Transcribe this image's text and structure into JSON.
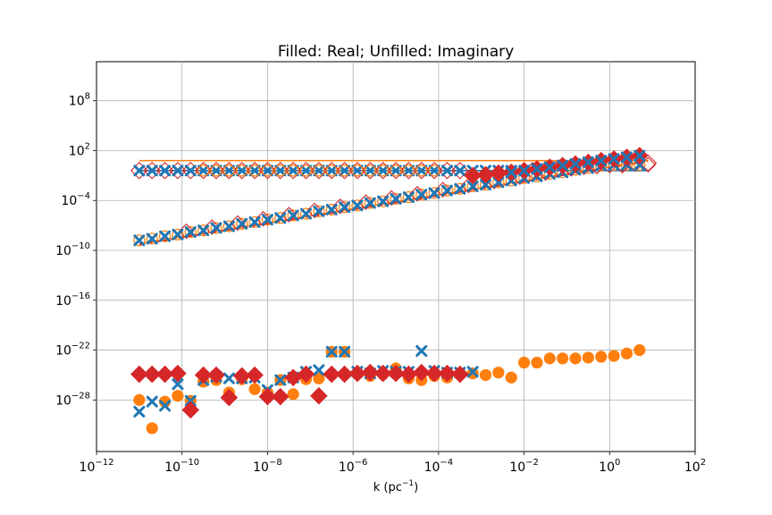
{
  "chart_data": {
    "type": "scatter",
    "title": "Filled: Real; Unfilled: Imaginary",
    "xlabel": "k (pc",
    "xlabel_sup": "−1",
    "xlabel_end": ")",
    "ylabel": "",
    "x_scale": "log",
    "y_scale": "log",
    "xlim": [
      -12,
      2
    ],
    "ylim": [
      -34.2,
      12.7
    ],
    "grid": true,
    "x_ticks": [
      {
        "exp": -12,
        "base": "10",
        "sup": "−12"
      },
      {
        "exp": -10,
        "base": "10",
        "sup": "−10"
      },
      {
        "exp": -8,
        "base": "10",
        "sup": "−8"
      },
      {
        "exp": -6,
        "base": "10",
        "sup": "−6"
      },
      {
        "exp": -4,
        "base": "10",
        "sup": "−4"
      },
      {
        "exp": -2,
        "base": "10",
        "sup": "−2"
      },
      {
        "exp": 0,
        "base": "10",
        "sup": "0"
      },
      {
        "exp": 2,
        "base": "10",
        "sup": "2"
      }
    ],
    "y_ticks": [
      {
        "exp": 8,
        "base": "10",
        "sup": "8"
      },
      {
        "exp": 2,
        "base": "10",
        "sup": "2"
      },
      {
        "exp": -4,
        "base": "10",
        "sup": "−4"
      },
      {
        "exp": -10,
        "base": "10",
        "sup": "−10"
      },
      {
        "exp": -16,
        "base": "10",
        "sup": "−16"
      },
      {
        "exp": -22,
        "base": "10",
        "sup": "−22"
      },
      {
        "exp": -28,
        "base": "10",
        "sup": "−28"
      }
    ],
    "colors": {
      "blue": "#1f77b4",
      "orange": "#ff7f0e",
      "red": "#d62728"
    },
    "lines": [
      {
        "name": "orange-horizontal",
        "color": "#ff7f0e",
        "style": "solid",
        "x": [
          -11,
          0.9
        ],
        "y": [
          0.8,
          0.8
        ]
      },
      {
        "name": "blue-horizontal",
        "color": "#1f77b4",
        "style": "solid",
        "x": [
          -11,
          0.9
        ],
        "y": [
          -0.4,
          -0.4
        ]
      },
      {
        "name": "orange-diagonal",
        "color": "#ff7f0e",
        "style": "solid",
        "x": [
          -11,
          0.9
        ],
        "y": [
          -9.2,
          0.8
        ]
      },
      {
        "name": "red-dashed-diagonal",
        "color": "#d62728",
        "style": "dashed",
        "x": [
          -11,
          0.9
        ],
        "y": [
          -9.3,
          0.7
        ]
      }
    ],
    "series": [
      {
        "group": "imag-red-diamond-upper",
        "marker": "diamond",
        "filled": false,
        "color": "#d62728",
        "size": 9,
        "x": [
          -11,
          -10.7,
          -10.4,
          -10.1,
          -9.8,
          -9.5,
          -9.2,
          -8.9,
          -8.6,
          -8.3,
          -8,
          -7.7,
          -7.4,
          -7.1,
          -6.8,
          -6.5,
          -6.2,
          -5.9,
          -5.6,
          -5.3,
          -5,
          -4.7,
          -4.4,
          -4.1,
          -3.8,
          -3.5
        ],
        "y": [
          -0.4,
          -0.4,
          -0.4,
          -0.4,
          -0.4,
          -0.4,
          -0.4,
          -0.4,
          -0.4,
          -0.4,
          -0.4,
          -0.4,
          -0.4,
          -0.4,
          -0.4,
          -0.4,
          -0.4,
          -0.4,
          -0.4,
          -0.4,
          -0.4,
          -0.4,
          -0.4,
          -0.4,
          -0.4,
          -0.4
        ]
      },
      {
        "group": "imag-red-diamond-right",
        "marker": "diamond",
        "filled": false,
        "color": "#d62728",
        "size": 9,
        "x": [
          -1.8,
          -1.5,
          -1.2,
          -0.9,
          -0.6,
          -0.3,
          0,
          0.3,
          0.6,
          0.9
        ],
        "y": [
          -0.4,
          -0.3,
          -0.1,
          0,
          0.1,
          0.2,
          0.3,
          0.4,
          0.5,
          0.5
        ]
      },
      {
        "group": "imag-blue-x-upper",
        "marker": "x",
        "filled": false,
        "color": "#1f77b4",
        "size": 5,
        "x": [
          -11,
          -10.7,
          -10.4,
          -10.1,
          -9.8,
          -9.5,
          -9.2,
          -8.9,
          -8.6,
          -8.3,
          -8,
          -7.7,
          -7.4,
          -7.1,
          -6.8,
          -6.5,
          -6.2,
          -5.9,
          -5.6,
          -5.3,
          -5,
          -4.7,
          -4.4,
          -4.1,
          -3.8,
          -3.5,
          -3.2,
          -2.9,
          -2.6,
          -2.3
        ],
        "y": [
          -0.4,
          -0.4,
          -0.4,
          -0.4,
          -0.4,
          -0.4,
          -0.4,
          -0.4,
          -0.4,
          -0.4,
          -0.4,
          -0.4,
          -0.4,
          -0.4,
          -0.4,
          -0.4,
          -0.4,
          -0.4,
          -0.4,
          -0.4,
          -0.4,
          -0.4,
          -0.4,
          -0.4,
          -0.4,
          -0.4,
          -0.4,
          -0.4,
          -0.4,
          -0.4
        ]
      },
      {
        "group": "imag-orange-circle-upper",
        "marker": "circle",
        "filled": false,
        "color": "#ff7f0e",
        "size": 6,
        "x": [
          -9.5,
          -9.2,
          -8.9,
          -8.6,
          -8.3,
          -8,
          -7.7,
          -7.4,
          -7.1,
          -6.8,
          -6.5,
          -6.2,
          -5.9,
          -5.6,
          -5.3,
          -5,
          -4.7,
          -4.4,
          -4.1
        ],
        "y": [
          -0.4,
          -0.4,
          -0.4,
          -0.4,
          -0.4,
          -0.4,
          -0.4,
          -0.4,
          -0.4,
          -0.4,
          -0.4,
          -0.4,
          -0.4,
          -0.4,
          -0.4,
          -0.4,
          -0.4,
          -0.4,
          -0.4
        ]
      },
      {
        "group": "imag-orange-circle-diagonal",
        "marker": "circle",
        "filled": false,
        "color": "#ff7f0e",
        "size": 6,
        "x": [
          -11,
          -10.7,
          -10.4,
          -10.1,
          -9.8,
          -9.5,
          -9.2,
          -8.9,
          -8.6,
          -8.3,
          -8,
          -7.7,
          -7.4,
          -7.1,
          -6.8,
          -6.5,
          -6.2,
          -5.9,
          -5.6,
          -5.3,
          -5,
          -4.7,
          -4.4,
          -4.1,
          -3.8,
          -3.5,
          -3.2,
          -2.9,
          -2.6,
          -2.3,
          -2,
          -1.7,
          -1.4,
          -1.1,
          -0.8,
          -0.5,
          -0.2,
          0.1,
          0.4,
          0.7
        ],
        "y": [
          -8.8,
          -8.6,
          -8.3,
          -8.1,
          -7.8,
          -7.6,
          -7.3,
          -7.1,
          -6.8,
          -6.6,
          -6.3,
          -6.1,
          -5.8,
          -5.6,
          -5.3,
          -5.1,
          -4.8,
          -4.6,
          -4.3,
          -4.1,
          -3.8,
          -3.6,
          -3.3,
          -3.1,
          -2.8,
          -2.6,
          -2.3,
          -2.1,
          -1.8,
          -1.6,
          -1.3,
          -1.1,
          -0.8,
          -0.6,
          -0.3,
          -0.1,
          0.2,
          0.3,
          0.3,
          0.3
        ]
      },
      {
        "group": "imag-red-diamond-diagonal",
        "marker": "diamond",
        "filled": false,
        "color": "#d62728",
        "size": 8,
        "x": [
          -9.9,
          -9.3,
          -8.7,
          -8.1,
          -7.5,
          -6.9,
          -6.3,
          -5.7,
          -5.1,
          -4.5,
          -3.9,
          -3.3,
          -2.7,
          -2.1,
          -1.5,
          -0.9,
          -0.3,
          0.3,
          0.9
        ],
        "y": [
          -7.7,
          -7.2,
          -6.7,
          -6.2,
          -5.7,
          -5.2,
          -4.7,
          -4.2,
          -3.7,
          -3.2,
          -2.7,
          -2.2,
          -1.7,
          -1.2,
          -0.7,
          -0.2,
          0.1,
          0.2,
          0.3
        ]
      },
      {
        "group": "imag-blue-x-diagonal",
        "marker": "x",
        "filled": false,
        "color": "#1f77b4",
        "size": 5,
        "x": [
          -11,
          -10.7,
          -10.4,
          -10.1,
          -9.8,
          -9.5,
          -9.2,
          -8.9,
          -8.6,
          -8.3,
          -8,
          -7.7,
          -7.4,
          -7.1,
          -6.8,
          -6.5,
          -6.2,
          -5.9,
          -5.6,
          -5.3,
          -5,
          -4.7,
          -4.4,
          -4.1,
          -3.8,
          -3.5,
          -3.2,
          -2.9,
          -2.6,
          -2.3,
          -2,
          -1.7,
          -1.4,
          -1.1,
          -0.8,
          -0.5,
          -0.2,
          0.1,
          0.4,
          0.7
        ],
        "y": [
          -8.8,
          -8.6,
          -8.3,
          -8.1,
          -7.8,
          -7.6,
          -7.3,
          -7.1,
          -6.8,
          -6.6,
          -6.3,
          -6.1,
          -5.8,
          -5.6,
          -5.3,
          -5.1,
          -4.8,
          -4.6,
          -4.3,
          -4.1,
          -3.8,
          -3.6,
          -3.3,
          -3.1,
          -2.8,
          -2.6,
          -2.3,
          -2.1,
          -1.8,
          -1.6,
          -1.3,
          -1.1,
          -0.8,
          -0.6,
          -0.3,
          -0.1,
          0.2,
          0.3,
          0.3,
          0.3
        ]
      },
      {
        "group": "real-red-diamond-upper",
        "marker": "diamond",
        "filled": true,
        "color": "#d62728",
        "size": 9,
        "x": [
          -3.2,
          -2.9,
          -2.6,
          -2.3,
          -2,
          -1.7,
          -1.4,
          -1.1,
          -0.8,
          -0.5,
          -0.2,
          0.1,
          0.4,
          0.7
        ],
        "y": [
          -1,
          -0.9,
          -0.7,
          -0.6,
          -0.4,
          -0.2,
          0,
          0.2,
          0.4,
          0.6,
          0.8,
          1,
          1.2,
          1.4
        ]
      },
      {
        "group": "real-blue-x-upper",
        "marker": "x",
        "filled": true,
        "color": "#1f77b4",
        "size": 5,
        "x": [
          -2.3,
          -2,
          -1.7,
          -1.4,
          -1.1,
          -0.8,
          -0.5,
          -0.2,
          0.1,
          0.4,
          0.7
        ],
        "y": [
          -0.6,
          -0.4,
          -0.2,
          0,
          0.2,
          0.4,
          0.6,
          0.8,
          1,
          1.2,
          1.4
        ]
      },
      {
        "group": "real-orange-circle-lower",
        "marker": "circle",
        "filled": true,
        "color": "#ff7f0e",
        "size": 6,
        "x": [
          -11,
          -10.7,
          -10.4,
          -10.1,
          -9.8,
          -9.5,
          -9.2,
          -8.9,
          -8.6,
          -8.3,
          -8,
          -7.7,
          -7.4,
          -7.1,
          -6.8,
          -6.5,
          -6.2,
          -5.9,
          -5.6,
          -5.3,
          -5,
          -4.7,
          -4.4,
          -4.1,
          -3.8,
          -3.5,
          -3.2,
          -2.9,
          -2.6,
          -2.3,
          -2,
          -1.7,
          -1.4,
          -1.1,
          -0.8,
          -0.5,
          -0.2,
          0.1,
          0.4,
          0.7
        ],
        "y": [
          -28,
          -31.4,
          -28.2,
          -27.5,
          -28.1,
          -25.8,
          -25.6,
          -27.1,
          -25.5,
          -26.7,
          -27.1,
          -25.6,
          -27.3,
          -25.5,
          -25.4,
          -22.2,
          -22.2,
          -24.8,
          -25.1,
          -24.9,
          -24.2,
          -25.4,
          -25.6,
          -25.1,
          -25.3,
          -24.9,
          -24.8,
          -25,
          -24.7,
          -25.3,
          -23.5,
          -23.5,
          -23,
          -23,
          -23,
          -22.9,
          -22.8,
          -22.7,
          -22.4,
          -22
        ]
      },
      {
        "group": "real-blue-x-lower",
        "marker": "x",
        "filled": true,
        "color": "#1f77b4",
        "size": 5,
        "x": [
          -11,
          -10.7,
          -10.4,
          -10.1,
          -9.8,
          -9.5,
          -9.2,
          -8.9,
          -8.6,
          -8.3,
          -8,
          -7.7,
          -7.4,
          -7.1,
          -6.8,
          -6.5,
          -6.2,
          -5.9,
          -5.6,
          -5.3,
          -5,
          -4.7,
          -4.4,
          -4.1,
          -3.8,
          -3.5,
          -3.2
        ],
        "y": [
          -29.4,
          -28.2,
          -28.7,
          -26.1,
          -28.1,
          -25.6,
          -25.2,
          -25.4,
          -25.4,
          -25.3,
          -26.8,
          -25.6,
          -25.3,
          -24.6,
          -24.4,
          -22.2,
          -22.2,
          -24.6,
          -24.8,
          -24.5,
          -24.6,
          -24.6,
          -22.1,
          -24.5,
          -24.7,
          -24.7,
          -24.6
        ]
      },
      {
        "group": "real-red-diamond-lower",
        "marker": "diamond",
        "filled": true,
        "color": "#d62728",
        "size": 9,
        "x": [
          -11,
          -10.7,
          -10.4,
          -10.1,
          -9.8,
          -9.5,
          -9.2,
          -8.9,
          -8.6,
          -8.3,
          -8,
          -7.7,
          -7.4,
          -7.1,
          -6.8,
          -6.5,
          -6.2,
          -5.9,
          -5.6,
          -5.3,
          -5,
          -4.7,
          -4.4,
          -4.1,
          -3.8,
          -3.5
        ],
        "y": [
          -24.9,
          -24.9,
          -24.9,
          -24.8,
          -29.2,
          -25,
          -25,
          -27.7,
          -25.1,
          -25,
          -27.6,
          -27.6,
          -25.3,
          -24.9,
          -27.5,
          -24.9,
          -24.9,
          -24.8,
          -24.7,
          -24.8,
          -24.8,
          -24.9,
          -24.7,
          -24.8,
          -24.8,
          -24.9
        ]
      }
    ]
  }
}
